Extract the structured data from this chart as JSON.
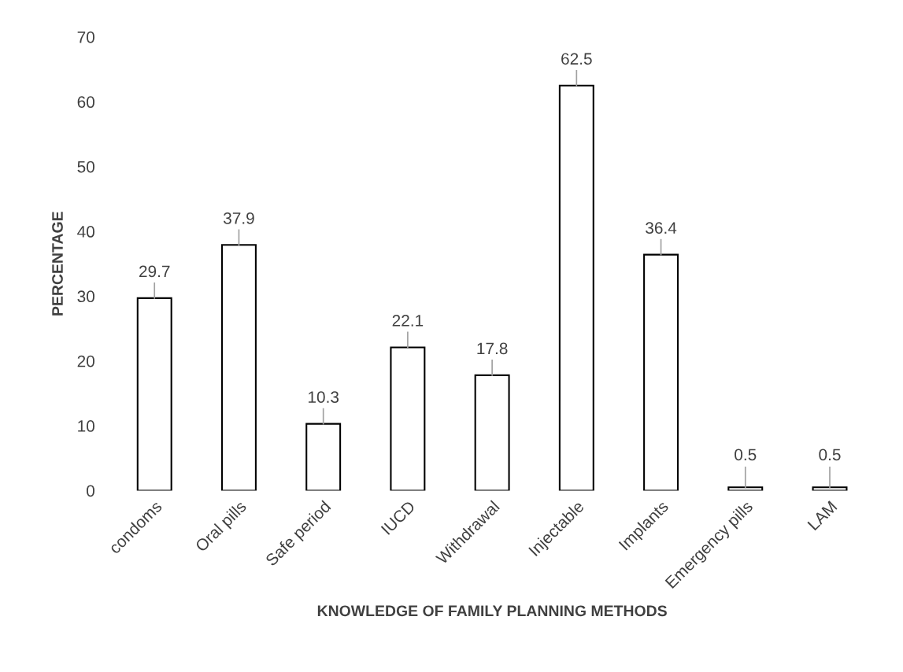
{
  "chart_data": {
    "type": "bar",
    "xlabel": "KNOWLEDGE OF FAMILY PLANNING METHODS",
    "ylabel": "PERCENTAGE",
    "categories": [
      "condoms",
      "Oral pills",
      "Safe period",
      "IUCD",
      "Withdrawal",
      "Injectable",
      "Implants",
      "Emergency pills",
      "LAM"
    ],
    "values": [
      29.7,
      37.9,
      10.3,
      22.1,
      17.8,
      62.5,
      36.4,
      0.5,
      0.5
    ],
    "color": "#ffffff",
    "ylim": [
      0,
      70
    ],
    "yticks": [
      0,
      10,
      20,
      30,
      40,
      50,
      60,
      70
    ],
    "data_labels": true,
    "grid": false
  }
}
